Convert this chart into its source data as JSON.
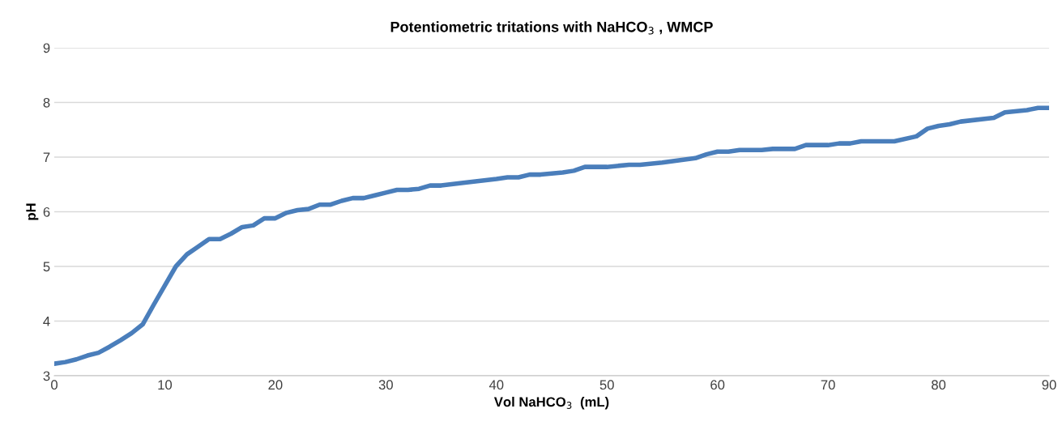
{
  "chart_data": {
    "type": "line",
    "title": "Potentiometric tritations with NaHCO$_{3}$ , WMCP",
    "xlabel": "Vol NaHCO$_{3}$  (mL)",
    "ylabel": "pH",
    "x": [
      0,
      1,
      2,
      3,
      4,
      5,
      6,
      7,
      8,
      9,
      10,
      11,
      12,
      13,
      14,
      15,
      16,
      17,
      18,
      19,
      20,
      21,
      22,
      23,
      24,
      25,
      26,
      27,
      28,
      29,
      30,
      31,
      32,
      33,
      34,
      35,
      37,
      40,
      41,
      42,
      43,
      44,
      46,
      47,
      48,
      50,
      52,
      53,
      55,
      58,
      59,
      60,
      61,
      62,
      64,
      65,
      67,
      68,
      70,
      71,
      72,
      73,
      76,
      78,
      79,
      80,
      81,
      82,
      85,
      86,
      88,
      89,
      90
    ],
    "series": [
      {
        "color": "#4a7ebb",
        "values": [
          3.22,
          3.25,
          3.3,
          3.37,
          3.42,
          3.53,
          3.65,
          3.78,
          3.94,
          4.3,
          4.65,
          5.0,
          5.22,
          5.36,
          5.5,
          5.5,
          5.6,
          5.72,
          5.75,
          5.88,
          5.88,
          5.98,
          6.03,
          6.05,
          6.13,
          6.13,
          6.2,
          6.25,
          6.25,
          6.3,
          6.35,
          6.4,
          6.4,
          6.42,
          6.48,
          6.48,
          6.53,
          6.6,
          6.63,
          6.63,
          6.68,
          6.68,
          6.72,
          6.75,
          6.82,
          6.82,
          6.86,
          6.86,
          6.9,
          6.98,
          7.05,
          7.1,
          7.1,
          7.13,
          7.13,
          7.15,
          7.15,
          7.22,
          7.22,
          7.25,
          7.25,
          7.29,
          7.29,
          7.38,
          7.52,
          7.57,
          7.6,
          7.65,
          7.72,
          7.82,
          7.86,
          7.9,
          7.9
        ]
      }
    ],
    "xlim": [
      0,
      90
    ],
    "xticks": [
      0,
      10,
      20,
      30,
      40,
      50,
      60,
      70,
      80,
      90
    ],
    "ylim": [
      3,
      9
    ],
    "yticks": [
      3,
      4,
      5,
      6,
      7,
      8,
      9
    ],
    "grid": "y",
    "marker": "none",
    "line_style": "solid"
  }
}
